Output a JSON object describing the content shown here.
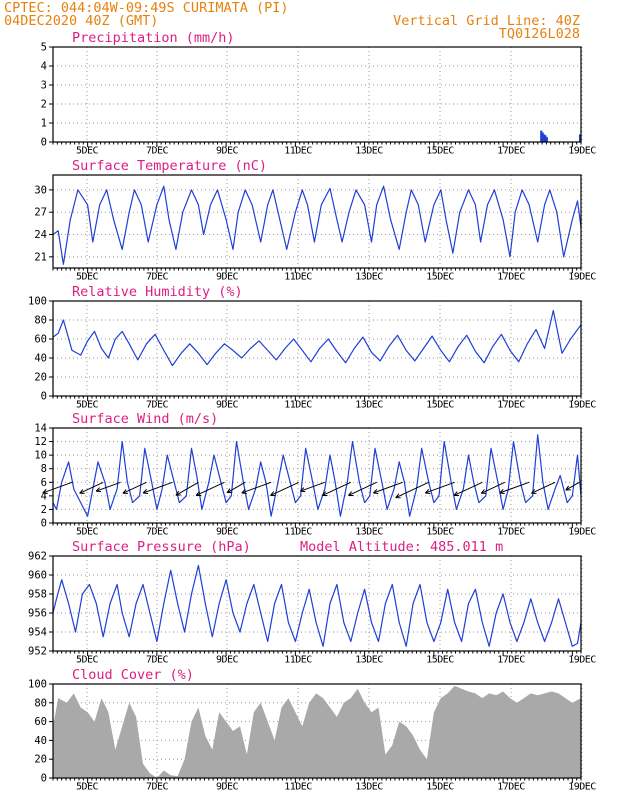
{
  "header": {
    "line1": "CPTEC:   044:04W-09:49S   CURIMATA (PI)",
    "line2": "04DEC2020 40Z (GMT)",
    "grid_note": "Vertical Grid Line: 40Z",
    "code": "TQ0126L028"
  },
  "colors": {
    "header": "#e6820e",
    "title": "#dc1e82",
    "line": "#1f3fd6",
    "bar": "#a9a9a9",
    "wind": "#000000"
  },
  "x_ticks": [
    "5DEC",
    "7DEC",
    "9DEC",
    "11DEC",
    "13DEC",
    "15DEC",
    "17DEC",
    "19DEC"
  ],
  "chart_data": [
    {
      "id": "precip",
      "type": "bar",
      "title": "Precipitation (mm/h)",
      "extra_title": "",
      "xlim": [
        0,
        15.25
      ],
      "ylim": [
        0,
        5
      ],
      "yticks": [
        0,
        1,
        2,
        3,
        4,
        5
      ],
      "grid": true,
      "series": [
        {
          "x": [
            14.1,
            14.14,
            14.18,
            14.22,
            14.26,
            15.22
          ],
          "values": [
            0.6,
            0.5,
            0.4,
            0.35,
            0.25,
            0.4
          ]
        }
      ]
    },
    {
      "id": "temp",
      "type": "line",
      "title": "Surface Temperature (nC)",
      "extra_title": "",
      "xlim": [
        0,
        15.25
      ],
      "ylim": [
        19.5,
        32
      ],
      "yticks": [
        21,
        24,
        27,
        30
      ],
      "grid": true,
      "series": [
        {
          "x": [
            0,
            0.15,
            0.3,
            0.5,
            0.72,
            1.0,
            1.15,
            1.35,
            1.55,
            1.75,
            2.0,
            2.2,
            2.35,
            2.55,
            2.75,
            3.0,
            3.2,
            3.35,
            3.55,
            3.75,
            4.0,
            4.2,
            4.35,
            4.55,
            4.75,
            5.0,
            5.2,
            5.35,
            5.55,
            5.75,
            6.0,
            6.2,
            6.35,
            6.55,
            6.75,
            7.0,
            7.2,
            7.35,
            7.55,
            7.75,
            8.0,
            8.2,
            8.35,
            8.55,
            8.75,
            9.0,
            9.2,
            9.35,
            9.55,
            9.75,
            10.0,
            10.2,
            10.35,
            10.55,
            10.75,
            11.0,
            11.2,
            11.35,
            11.55,
            11.75,
            12.0,
            12.2,
            12.35,
            12.55,
            12.75,
            13.0,
            13.2,
            13.35,
            13.55,
            13.75,
            14.0,
            14.2,
            14.35,
            14.55,
            14.75,
            15.0,
            15.15,
            15.25
          ],
          "values": [
            24,
            24.5,
            20,
            26,
            30,
            28,
            23,
            28,
            30,
            26,
            22,
            27,
            30,
            28,
            23,
            28,
            30.5,
            26,
            22,
            27,
            30,
            28,
            24,
            28,
            30,
            26,
            22,
            27,
            30,
            28,
            23,
            28,
            30,
            26,
            22,
            27,
            30,
            28,
            23,
            28,
            30.2,
            26,
            23,
            27,
            30,
            28,
            23,
            28,
            30.5,
            26,
            22,
            27,
            30,
            28,
            23,
            28,
            30,
            26,
            21.5,
            27,
            30,
            28,
            23,
            28,
            30,
            26,
            21,
            27,
            30,
            28,
            23,
            28,
            30,
            27,
            21,
            26,
            28.5,
            25
          ]
        }
      ]
    },
    {
      "id": "rh",
      "type": "line",
      "title": "Relative Humidity (%)",
      "extra_title": "",
      "xlim": [
        0,
        15.25
      ],
      "ylim": [
        0,
        100
      ],
      "yticks": [
        0,
        20,
        40,
        60,
        80,
        100
      ],
      "grid": true,
      "series": [
        {
          "x": [
            0,
            0.15,
            0.3,
            0.55,
            0.8,
            1.0,
            1.2,
            1.4,
            1.6,
            1.8,
            2.0,
            2.2,
            2.45,
            2.7,
            2.95,
            3.2,
            3.45,
            3.7,
            3.95,
            4.2,
            4.45,
            4.7,
            4.95,
            5.2,
            5.45,
            5.7,
            5.95,
            6.2,
            6.45,
            6.7,
            6.95,
            7.2,
            7.45,
            7.7,
            7.95,
            8.2,
            8.45,
            8.7,
            8.95,
            9.2,
            9.45,
            9.7,
            9.95,
            10.2,
            10.45,
            10.7,
            10.95,
            11.2,
            11.45,
            11.7,
            11.95,
            12.2,
            12.45,
            12.7,
            12.95,
            13.2,
            13.45,
            13.7,
            13.95,
            14.2,
            14.45,
            14.7,
            14.95,
            15.25
          ],
          "values": [
            62,
            66,
            80,
            48,
            43,
            58,
            68,
            50,
            40,
            60,
            68,
            55,
            38,
            55,
            65,
            48,
            32,
            45,
            55,
            45,
            33,
            45,
            55,
            48,
            40,
            50,
            58,
            48,
            38,
            50,
            60,
            48,
            36,
            50,
            60,
            47,
            35,
            50,
            62,
            46,
            37,
            52,
            64,
            48,
            37,
            50,
            63,
            48,
            36,
            52,
            64,
            47,
            35,
            52,
            65,
            48,
            36,
            55,
            70,
            50,
            90,
            45,
            60,
            75
          ]
        }
      ]
    },
    {
      "id": "wind",
      "type": "line",
      "title": "Surface Wind (m/s)",
      "extra_title": "",
      "xlim": [
        0,
        15.25
      ],
      "ylim": [
        0,
        14
      ],
      "yticks": [
        0,
        2,
        4,
        6,
        8,
        10,
        12,
        14
      ],
      "grid": true,
      "series": [
        {
          "x": [
            0,
            0.1,
            0.25,
            0.45,
            0.6,
            0.8,
            1.0,
            1.15,
            1.3,
            1.5,
            1.65,
            1.85,
            2.0,
            2.15,
            2.3,
            2.5,
            2.65,
            2.85,
            3.0,
            3.15,
            3.3,
            3.5,
            3.65,
            3.85,
            4.0,
            4.15,
            4.3,
            4.5,
            4.65,
            4.85,
            5.0,
            5.15,
            5.3,
            5.5,
            5.65,
            5.85,
            6.0,
            6.15,
            6.3,
            6.5,
            6.65,
            6.85,
            7.0,
            7.15,
            7.3,
            7.5,
            7.65,
            7.85,
            8.0,
            8.15,
            8.3,
            8.5,
            8.65,
            8.85,
            9.0,
            9.15,
            9.3,
            9.5,
            9.65,
            9.85,
            10.0,
            10.15,
            10.3,
            10.5,
            10.65,
            10.85,
            11.0,
            11.15,
            11.3,
            11.5,
            11.65,
            11.85,
            12.0,
            12.15,
            12.3,
            12.5,
            12.65,
            12.85,
            13.0,
            13.15,
            13.3,
            13.5,
            13.65,
            13.85,
            14.0,
            14.15,
            14.3,
            14.5,
            14.65,
            14.85,
            15.0,
            15.15,
            15.25
          ],
          "values": [
            3,
            2,
            6,
            9,
            5,
            3,
            1,
            5,
            9,
            6,
            2,
            5,
            12,
            6,
            3,
            4,
            11,
            6,
            2,
            5,
            10,
            6,
            3,
            4,
            11,
            7,
            2,
            6,
            10,
            6,
            3,
            4,
            12,
            6,
            2,
            5,
            9,
            6,
            1,
            6,
            10,
            6,
            3,
            4,
            11,
            6,
            2,
            5,
            10,
            6,
            1,
            6,
            12,
            6,
            3,
            4,
            11,
            6,
            2,
            5,
            9,
            6,
            1,
            5,
            11,
            6,
            3,
            4,
            12,
            6,
            2,
            5,
            10,
            6,
            3,
            4,
            11,
            6,
            2,
            5,
            12,
            6,
            3,
            4,
            13,
            6,
            2,
            5,
            7,
            3,
            4,
            10,
            4
          ]
        }
      ],
      "vectors": {
        "x": [
          0.55,
          1.45,
          1.95,
          2.7,
          3.45,
          4.2,
          4.95,
          5.55,
          6.3,
          7.1,
          7.85,
          8.6,
          9.35,
          10.1,
          10.85,
          11.6,
          12.4,
          13.05,
          13.75,
          14.5,
          15.2
        ],
        "speed": [
          6,
          5,
          5,
          5,
          6,
          5,
          6,
          4,
          6,
          6,
          5,
          6,
          6,
          6,
          7,
          6,
          6,
          5,
          6,
          5,
          3
        ],
        "bearing_deg": [
          200,
          205,
          200,
          205,
          200,
          210,
          205,
          210,
          200,
          205,
          200,
          205,
          205,
          200,
          205,
          200,
          205,
          205,
          200,
          205,
          210
        ]
      }
    },
    {
      "id": "pres",
      "type": "line",
      "title": "Surface Pressure (hPa)",
      "extra_title": "Model Altitude: 485.011 m",
      "xlim": [
        0,
        15.25
      ],
      "ylim": [
        952,
        962
      ],
      "yticks": [
        952,
        954,
        956,
        958,
        960,
        962
      ],
      "grid": true,
      "series": [
        {
          "x": [
            0,
            0.1,
            0.25,
            0.45,
            0.65,
            0.85,
            1.05,
            1.25,
            1.45,
            1.65,
            1.85,
            2.0,
            2.2,
            2.4,
            2.6,
            2.8,
            3.0,
            3.2,
            3.4,
            3.6,
            3.8,
            4.0,
            4.2,
            4.4,
            4.6,
            4.8,
            5.0,
            5.2,
            5.4,
            5.6,
            5.8,
            6.0,
            6.2,
            6.4,
            6.6,
            6.8,
            7.0,
            7.2,
            7.4,
            7.6,
            7.8,
            8.0,
            8.2,
            8.4,
            8.6,
            8.8,
            9.0,
            9.2,
            9.4,
            9.6,
            9.8,
            10.0,
            10.2,
            10.4,
            10.6,
            10.8,
            11.0,
            11.2,
            11.4,
            11.6,
            11.8,
            12.0,
            12.2,
            12.4,
            12.6,
            12.8,
            13.0,
            13.2,
            13.4,
            13.6,
            13.8,
            14.0,
            14.2,
            14.4,
            14.6,
            14.8,
            15.0,
            15.15,
            15.25
          ],
          "values": [
            956,
            957.5,
            959.5,
            957,
            954,
            958,
            959,
            957,
            953.5,
            957,
            959,
            956,
            953.5,
            957,
            959,
            956,
            953,
            957,
            960.5,
            957,
            954,
            958,
            961,
            957,
            953.5,
            957,
            959.5,
            956,
            954,
            957,
            959,
            956,
            953,
            957,
            959,
            955,
            953,
            956,
            958.5,
            955,
            952.5,
            957,
            959,
            955,
            953,
            956,
            958.5,
            955,
            953,
            957,
            959,
            955,
            952.5,
            957,
            959,
            955,
            953,
            955,
            958.5,
            955,
            953,
            957,
            958.5,
            955,
            952.5,
            956,
            958,
            955,
            953,
            955,
            957.5,
            955,
            953,
            955,
            957.5,
            955,
            952.5,
            952.8,
            955
          ]
        }
      ]
    },
    {
      "id": "cloud",
      "type": "area",
      "title": "Cloud Cover (%)",
      "extra_title": "",
      "xlim": [
        0,
        15.25
      ],
      "ylim": [
        0,
        100
      ],
      "yticks": [
        0,
        20,
        40,
        60,
        80,
        100
      ],
      "grid": true,
      "series": [
        {
          "x": [
            0,
            0.15,
            0.4,
            0.6,
            0.8,
            1.0,
            1.2,
            1.4,
            1.6,
            1.8,
            2.0,
            2.2,
            2.4,
            2.6,
            2.8,
            3.0,
            3.2,
            3.4,
            3.6,
            3.8,
            4.0,
            4.2,
            4.4,
            4.6,
            4.8,
            5.0,
            5.2,
            5.4,
            5.6,
            5.8,
            6.0,
            6.2,
            6.4,
            6.6,
            6.8,
            7.0,
            7.2,
            7.4,
            7.6,
            7.8,
            8.0,
            8.2,
            8.4,
            8.6,
            8.8,
            9.0,
            9.2,
            9.4,
            9.6,
            9.8,
            10.0,
            10.2,
            10.4,
            10.6,
            10.8,
            11.0,
            11.2,
            11.4,
            11.6,
            11.8,
            12.0,
            12.2,
            12.4,
            12.6,
            12.8,
            13.0,
            13.2,
            13.4,
            13.6,
            13.8,
            14.0,
            14.2,
            14.4,
            14.6,
            14.8,
            15.0,
            15.25
          ],
          "values": [
            55,
            85,
            80,
            90,
            75,
            70,
            60,
            85,
            70,
            30,
            55,
            80,
            65,
            15,
            5,
            0,
            8,
            3,
            2,
            20,
            60,
            75,
            45,
            30,
            70,
            60,
            50,
            55,
            25,
            70,
            80,
            60,
            40,
            75,
            85,
            70,
            55,
            80,
            90,
            85,
            75,
            65,
            80,
            85,
            95,
            80,
            70,
            75,
            25,
            35,
            60,
            55,
            45,
            30,
            20,
            70,
            85,
            90,
            98,
            95,
            92,
            90,
            85,
            90,
            88,
            92,
            85,
            80,
            85,
            90,
            88,
            90,
            92,
            90,
            85,
            80,
            85
          ]
        }
      ]
    }
  ]
}
